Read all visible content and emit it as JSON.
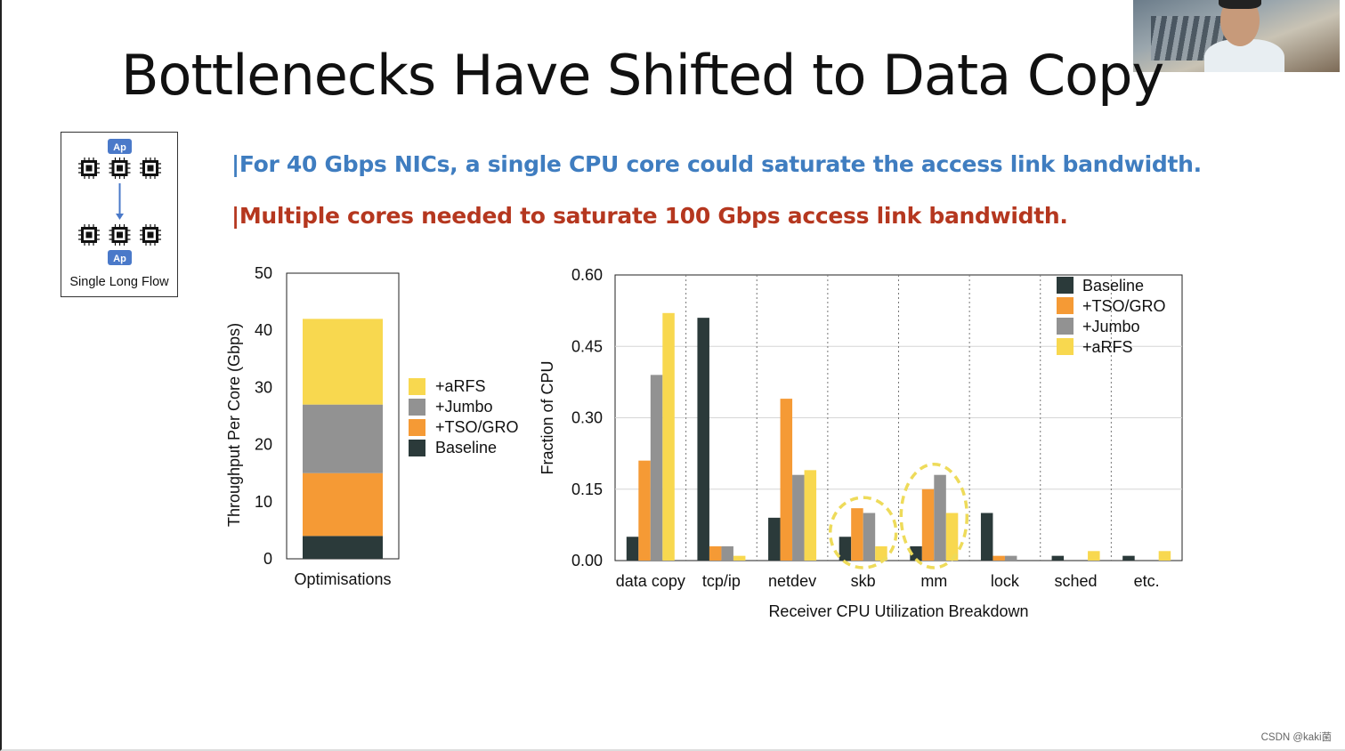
{
  "slide": {
    "title": "Bottlenecks Have Shifted to Data Copy",
    "bullets": [
      "|For 40 Gbps NICs, a single CPU core could saturate the access link bandwidth.",
      "|Multiple cores needed to saturate 100 Gbps access link bandwidth."
    ],
    "flow_diagram": {
      "app_badge": "Ap",
      "label": "Single Long Flow"
    },
    "watermark": "CSDN @kaki菌"
  },
  "colors": {
    "baseline": "#2b3a3a",
    "tso_gro": "#f59a35",
    "jumbo": "#929292",
    "arfs": "#f8d84f",
    "bullet_blue": "#3f7dc0",
    "bullet_red": "#b5371f",
    "highlight_circle": "#eedb5a"
  },
  "chart_data": [
    {
      "type": "bar",
      "stacked": true,
      "categories": [
        "Optimisations"
      ],
      "ylabel": "Throughput Per Core (Gbps)",
      "xlabel": "",
      "ylim": [
        0,
        50
      ],
      "yticks": [
        "0",
        "10",
        "20",
        "30",
        "40",
        "50"
      ],
      "legend_position": "right",
      "series": [
        {
          "name": "Baseline",
          "values": [
            4
          ]
        },
        {
          "name": "+TSO/GRO",
          "values": [
            11
          ]
        },
        {
          "name": "+Jumbo",
          "values": [
            12
          ]
        },
        {
          "name": "+aRFS",
          "values": [
            15
          ]
        }
      ],
      "legend": [
        "+aRFS",
        "+Jumbo",
        "+TSO/GRO",
        "Baseline"
      ]
    },
    {
      "type": "bar",
      "grouped": true,
      "categories": [
        "data copy",
        "tcp/ip",
        "netdev",
        "skb",
        "mm",
        "lock",
        "sched",
        "etc."
      ],
      "xlabel": "Receiver CPU Utilization Breakdown",
      "ylabel": "Fraction of CPU",
      "ylim": [
        0,
        0.6
      ],
      "yticks": [
        "0.00",
        "0.15",
        "0.30",
        "0.45",
        "0.60"
      ],
      "grid": true,
      "legend_position": "top-right",
      "series": [
        {
          "name": "Baseline",
          "values": [
            0.05,
            0.51,
            0.09,
            0.05,
            0.03,
            0.1,
            0.01,
            0.01
          ]
        },
        {
          "name": "+TSO/GRO",
          "values": [
            0.21,
            0.03,
            0.34,
            0.11,
            0.15,
            0.01,
            0.0,
            0.0
          ]
        },
        {
          "name": "+Jumbo",
          "values": [
            0.39,
            0.03,
            0.18,
            0.1,
            0.18,
            0.01,
            0.0,
            0.0
          ]
        },
        {
          "name": "+aRFS",
          "values": [
            0.52,
            0.01,
            0.19,
            0.03,
            0.1,
            0.0,
            0.02,
            0.02
          ]
        }
      ],
      "highlighted_categories": [
        "skb",
        "mm"
      ]
    }
  ]
}
